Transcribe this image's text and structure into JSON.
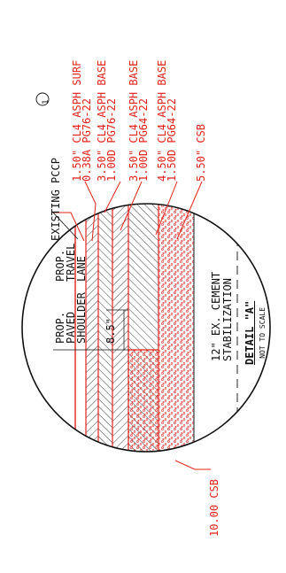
{
  "colors": {
    "accent": "#e2231a",
    "ink": "#111111"
  },
  "layers": [
    {
      "line1": "1.50\" CL4 ASPH SURF",
      "line2": "0.38A PG76-22"
    },
    {
      "line1": "3.50\" CL4 ASPH BASE",
      "line2": "1.00D PG76-22"
    },
    {
      "line1": "3.50\" CL4 ASPH BASE",
      "line2": "1.00D PG64-22"
    },
    {
      "line1": "4.50\" CL4 ASPH BASE",
      "line2": "1.50D PG64-22"
    },
    {
      "line1": "5.50\" CSB",
      "line2": ""
    }
  ],
  "existing_label": "EXISTING PCCP",
  "existing_note": "1",
  "bottom_label": "10.00 CSB",
  "lanes": {
    "shoulder": [
      "PROP.",
      "PAVED",
      "SHOULDER"
    ],
    "travel": [
      "PROP.",
      "TRAVEL",
      "LANE"
    ]
  },
  "offset_dim": "8.5\"",
  "stabilization": [
    "12\" EX. CEMENT",
    "STABILIZATION"
  ],
  "detail_title": "DETAIL \"A\"",
  "scale_note": "NOT TO SCALE"
}
